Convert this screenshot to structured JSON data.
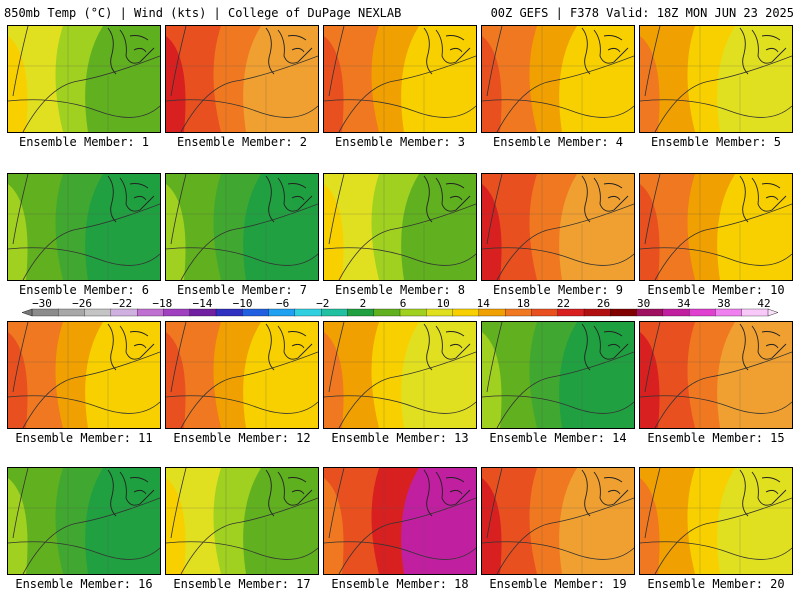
{
  "header": {
    "left": "850mb Temp (°C) | Wind (kts) | College of DuPage NEXLAB",
    "right": "00Z GEFS | F378 Valid: 18Z MON JUN 23 2025"
  },
  "colorbar": {
    "labels": [
      "-30",
      "-26",
      "-22",
      "-18",
      "-14",
      "-10",
      "-6",
      "-2",
      "2",
      "6",
      "10",
      "14",
      "18",
      "22",
      "26",
      "30",
      "34",
      "38",
      "42"
    ],
    "colors": [
      "#8c8c8c",
      "#a8a8a8",
      "#c4c4c4",
      "#d0b0e0",
      "#c070d0",
      "#a040c0",
      "#7020a0",
      "#3030c0",
      "#2060e0",
      "#20a0f0",
      "#30d0e0",
      "#20c0a0",
      "#20a040",
      "#60b020",
      "#a0d020",
      "#e0e020",
      "#f8d000",
      "#f0a000",
      "#f07820",
      "#e85020",
      "#d82020",
      "#b01010",
      "#800000",
      "#a01060",
      "#c020a0",
      "#e040d0",
      "#f080f0",
      "#f8c8f8"
    ]
  },
  "members": [
    {
      "label": "Ensemble Member: 1",
      "scheme": "lime"
    },
    {
      "label": "Ensemble Member: 2",
      "scheme": "red"
    },
    {
      "label": "Ensemble Member: 3",
      "scheme": "orange"
    },
    {
      "label": "Ensemble Member: 4",
      "scheme": "orange"
    },
    {
      "label": "Ensemble Member: 5",
      "scheme": "yellow"
    },
    {
      "label": "Ensemble Member: 6",
      "scheme": "green"
    },
    {
      "label": "Ensemble Member: 7",
      "scheme": "green"
    },
    {
      "label": "Ensemble Member: 8",
      "scheme": "lime"
    },
    {
      "label": "Ensemble Member: 9",
      "scheme": "red"
    },
    {
      "label": "Ensemble Member: 10",
      "scheme": "orange"
    },
    {
      "label": "Ensemble Member: 11",
      "scheme": "orange"
    },
    {
      "label": "Ensemble Member: 12",
      "scheme": "orange"
    },
    {
      "label": "Ensemble Member: 13",
      "scheme": "yellow"
    },
    {
      "label": "Ensemble Member: 14",
      "scheme": "green"
    },
    {
      "label": "Ensemble Member: 15",
      "scheme": "red"
    },
    {
      "label": "Ensemble Member: 16",
      "scheme": "green"
    },
    {
      "label": "Ensemble Member: 17",
      "scheme": "lime"
    },
    {
      "label": "Ensemble Member: 18",
      "scheme": "magenta"
    },
    {
      "label": "Ensemble Member: 19",
      "scheme": "red"
    },
    {
      "label": "Ensemble Member: 20",
      "scheme": "yellow"
    }
  ]
}
